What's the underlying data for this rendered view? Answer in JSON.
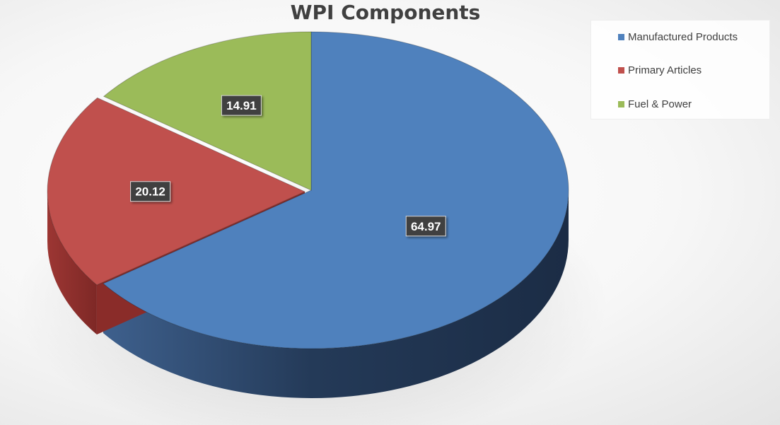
{
  "chart_data": {
    "type": "pie",
    "title": "WPI Components",
    "slices": [
      {
        "label": "Manufactured Products",
        "value": 64.97,
        "color": "#4f81bd"
      },
      {
        "label": "Primary Articles",
        "value": 20.12,
        "color": "#c0504d"
      },
      {
        "label": "Fuel & Power",
        "value": 14.91,
        "color": "#9bbb59"
      }
    ],
    "legend_position": "top-right",
    "style": "3d-exploded"
  }
}
